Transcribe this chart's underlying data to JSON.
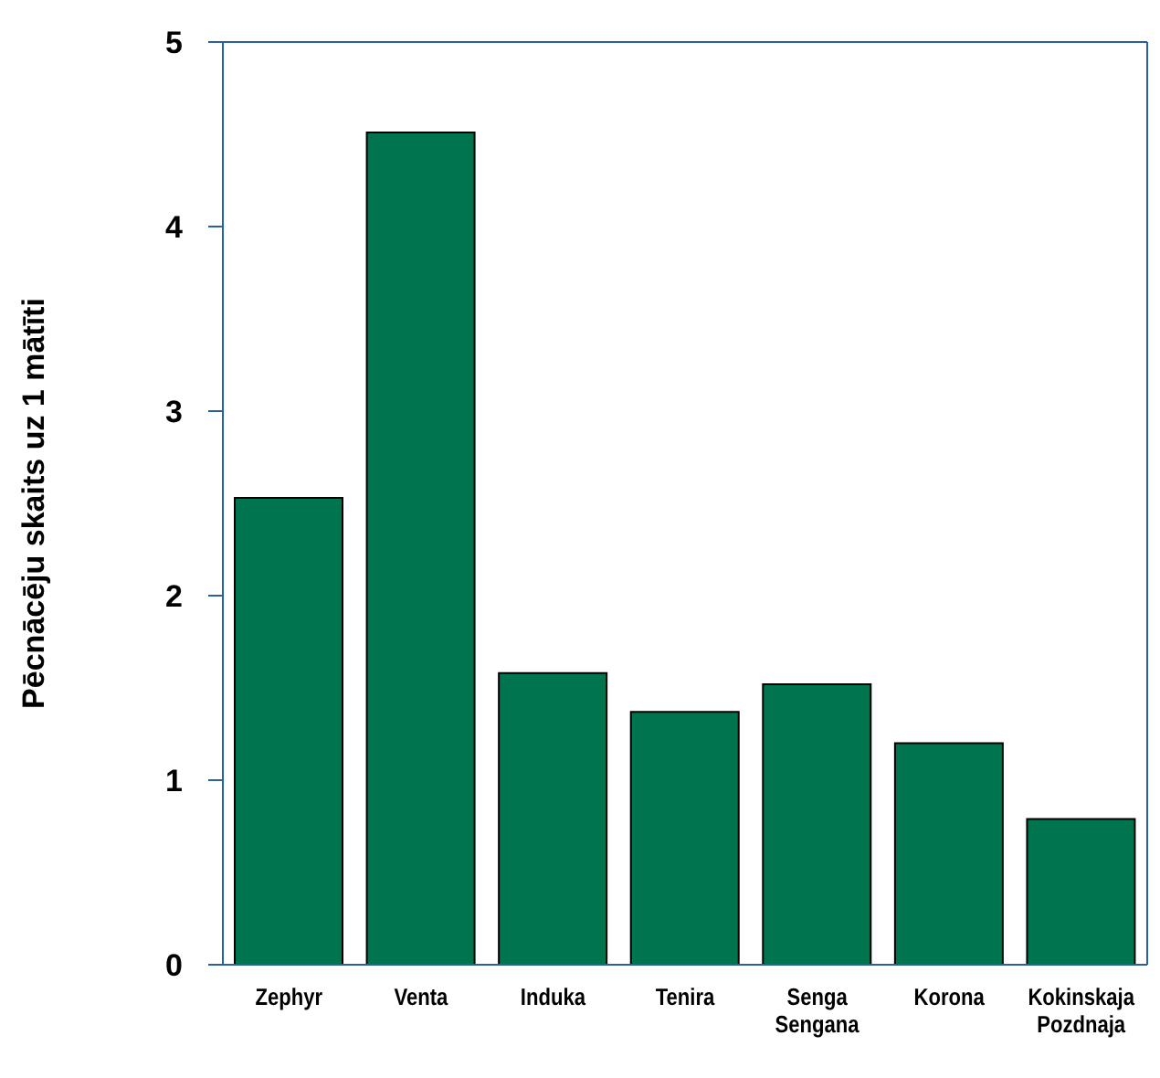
{
  "chart_data": {
    "type": "bar",
    "ylabel": "Pēcnācēju skaits uz 1 mātīti",
    "categories": [
      "Zephyr",
      "Venta",
      "Induka",
      "Tenira",
      "Senga Sengana",
      "Korona",
      "Kokinskaja Pozdnaja"
    ],
    "values": [
      2.53,
      4.51,
      1.58,
      1.37,
      1.52,
      1.2,
      0.79
    ],
    "color": "#00734f",
    "ylim": [
      0,
      5
    ],
    "yticks": [
      0,
      1,
      2,
      3,
      4,
      5
    ]
  }
}
